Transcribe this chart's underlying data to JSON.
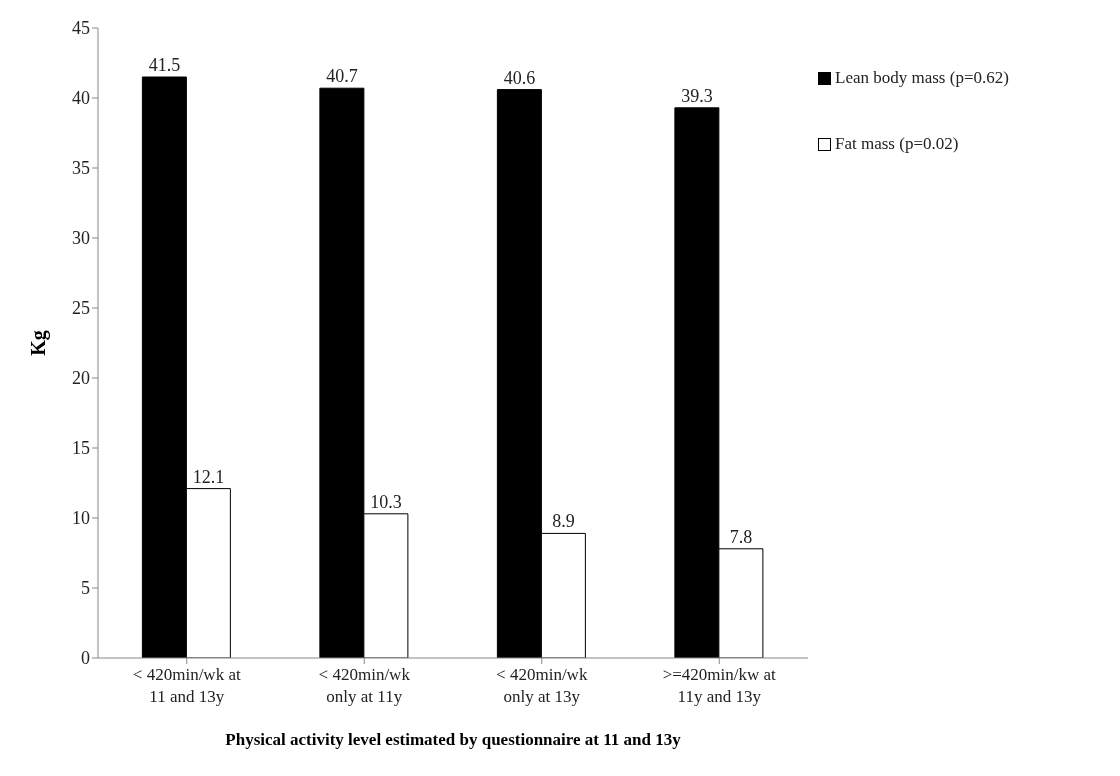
{
  "chart_data": {
    "type": "bar",
    "ylabel": "Kg",
    "xlabel": "Physical activity level estimated by questionnaire  at 11 and 13y",
    "categories": [
      "< 420min/wk at 11 and 13y",
      "< 420min/wk only at 11y",
      "< 420min/wk only at 13y",
      ">=420min/kw at 11y and 13y"
    ],
    "series": [
      {
        "name": "Lean body mass (p=0.62)",
        "color": "#000000",
        "values": [
          41.5,
          40.7,
          40.6,
          39.3
        ]
      },
      {
        "name": "Fat mass (p=0.02)",
        "color": "#ffffff",
        "values": [
          12.1,
          10.3,
          8.9,
          7.8
        ]
      }
    ],
    "ylim": [
      0,
      45
    ],
    "yticks": [
      0,
      5,
      10,
      15,
      20,
      25,
      30,
      35,
      40,
      45
    ],
    "grid": false,
    "legend": "top right",
    "data_labels": true
  }
}
